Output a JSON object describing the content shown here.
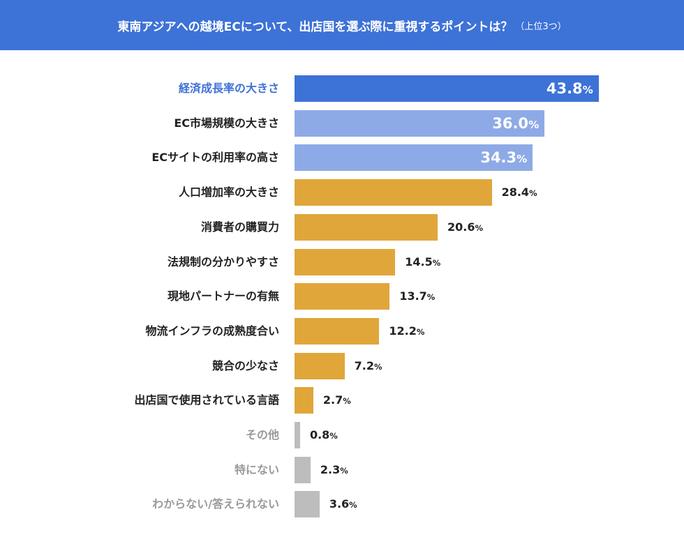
{
  "header": {
    "title": "東南アジアへの越境ECについて、出店国を選ぶ際に重視するポイントは？",
    "subtitle": "（上位3つ）"
  },
  "colors": {
    "header": "#3d72d7",
    "top": "#3d72d7",
    "second": "#8eaae6",
    "main": "#e0a63a",
    "other": "#bdbdbd",
    "label_dark": "#222222",
    "label_gray": "#999999"
  },
  "chart_data": {
    "type": "bar",
    "orientation": "horizontal",
    "title": "東南アジアへの越境ECについて、出店国を選ぶ際に重視するポイントは？（上位3つ）",
    "unit": "%",
    "categories": [
      "経済成長率の大きさ",
      "EC市場規模の大きさ",
      "ECサイトの利用率の高さ",
      "人口増加率の大きさ",
      "消費者の購買力",
      "法規制の分かりやすさ",
      "現地パートナーの有無",
      "物流インフラの成熟度合い",
      "競合の少なさ",
      "出店国で使用されている言語",
      "その他",
      "特にない",
      "わからない/答えられない"
    ],
    "values": [
      43.8,
      36.0,
      34.3,
      28.4,
      20.6,
      14.5,
      13.7,
      12.2,
      7.2,
      2.7,
      0.8,
      2.3,
      3.6
    ],
    "labels": [
      "43.8",
      "36.0",
      "34.3",
      "28.4",
      "20.6",
      "14.5",
      "13.7",
      "12.2",
      "7.2",
      "2.7",
      "0.8",
      "2.3",
      "3.6"
    ],
    "groups": [
      "top",
      "second",
      "second",
      "main",
      "main",
      "main",
      "main",
      "main",
      "main",
      "main",
      "other",
      "other",
      "other"
    ],
    "xlim": [
      0,
      45
    ],
    "grid": false
  }
}
